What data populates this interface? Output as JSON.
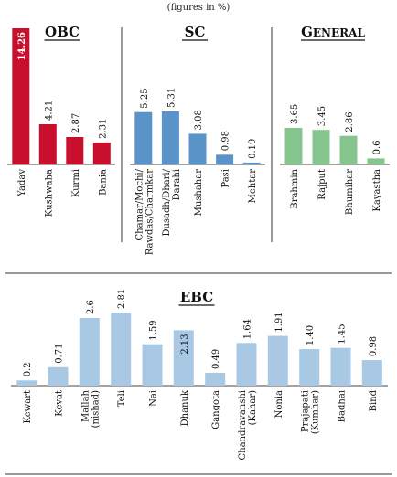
{
  "subtitle": "(figures in %)",
  "chart_data": [
    {
      "type": "bar",
      "title": "OBC",
      "color": "#c8102e",
      "categories": [
        "Yadav",
        "Kushwaha",
        "Kurmi",
        "Bania"
      ],
      "values": [
        14.26,
        4.21,
        2.87,
        2.31
      ]
    },
    {
      "type": "bar",
      "title": "SC",
      "color": "#5a93c7",
      "categories": [
        [
          "Chamar/Mochi/",
          "Rawdas/Charmkar"
        ],
        [
          "Dusadh/Dhari/",
          "Darahi"
        ],
        "Mushahar",
        "Pasi",
        "Mehtar"
      ],
      "values": [
        5.25,
        5.31,
        3.08,
        0.98,
        0.19
      ]
    },
    {
      "type": "bar",
      "title": "GENERAL",
      "color": "#87c58f",
      "categories": [
        "Brahmin",
        "Rajput",
        "Bhumihar",
        "Kayastha"
      ],
      "values": [
        3.65,
        3.45,
        2.86,
        0.6
      ]
    },
    {
      "type": "bar",
      "title": "EBC",
      "color": "#a8c8e4",
      "categories": [
        "Kewart",
        "Kevat",
        [
          "Mallah",
          "(nishad)"
        ],
        "Teli",
        "Nai",
        "Dhanuk",
        "Gangota",
        [
          "Chandravanshi",
          "(Kahar)"
        ],
        "Nonia",
        [
          "Prajapati",
          "(Kumhar)"
        ],
        "Badhai",
        "Bind"
      ],
      "values": [
        0.2,
        0.71,
        2.6,
        2.81,
        1.59,
        2.13,
        0.49,
        1.64,
        1.91,
        1.4,
        1.45,
        0.98
      ],
      "value_labels": [
        "0.2",
        "0.71",
        "2.6",
        "2.81",
        "1.59",
        "2.13",
        "0.49",
        "1.64",
        "1.91",
        "1.40",
        "1.45",
        "0.98"
      ]
    }
  ]
}
